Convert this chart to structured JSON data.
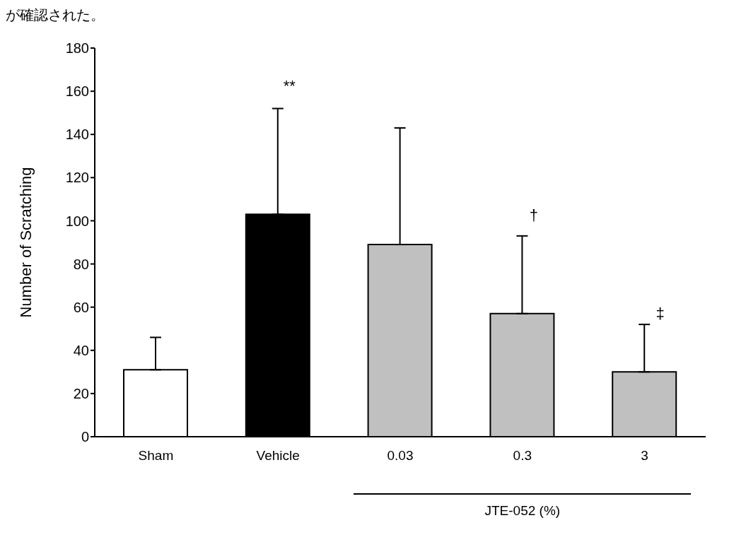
{
  "chart_data": {
    "type": "bar",
    "ylabel": "Number of Scratching",
    "categories": [
      "Sham",
      "Vehicle",
      "0.03",
      "0.3",
      "3"
    ],
    "values": [
      31,
      103,
      89,
      57,
      30
    ],
    "colors": [
      "#ffffff",
      "#000000",
      "#c0c0c0",
      "#c0c0c0",
      "#c0c0c0"
    ],
    "errors": [
      [
        31,
        46
      ],
      [
        103,
        152
      ],
      [
        89,
        143
      ],
      [
        57,
        93
      ],
      [
        30,
        52
      ]
    ],
    "ylim": [
      0,
      180
    ],
    "yticks": [
      0,
      20,
      40,
      60,
      80,
      100,
      120,
      140,
      160,
      180
    ],
    "grid": false,
    "legend": false,
    "annotations": [
      "が確認された。",
      "JTE-052 (%)",
      "**",
      "†",
      "‡"
    ]
  }
}
